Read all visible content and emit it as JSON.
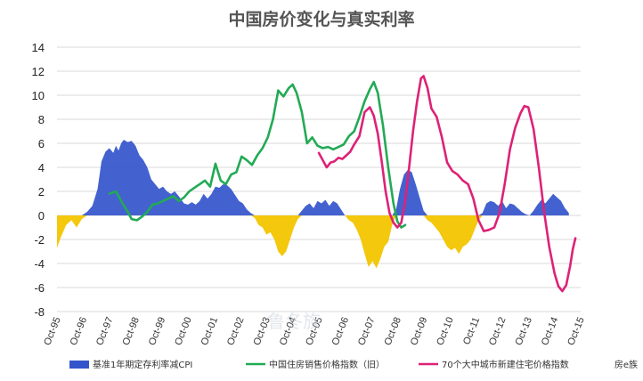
{
  "chart_data": {
    "type": "area+line",
    "title": "中国房价变化与真实利率",
    "y_ticks": [
      "14",
      "12",
      "10",
      "8",
      "6",
      "4",
      "2",
      "0",
      "-2",
      "-4",
      "-6",
      "-8"
    ],
    "ylim": [
      -8,
      14
    ],
    "xlim": [
      1995.75,
      2015.75
    ],
    "x_ticks": [
      "Oct-95",
      "Oct-96",
      "Oct-97",
      "Oct-98",
      "Oct-99",
      "Oct-00",
      "Oct-01",
      "Oct-02",
      "Oct-03",
      "Oct-04",
      "Oct-05",
      "Oct-06",
      "Oct-07",
      "Oct-08",
      "Oct-09",
      "Oct-10",
      "Oct-11",
      "Oct-12",
      "Oct-13",
      "Oct-14",
      "Oct-15"
    ],
    "x_tick_years": [
      1995.75,
      1996.75,
      1997.75,
      1998.75,
      1999.75,
      2000.75,
      2001.75,
      2002.75,
      2003.75,
      2004.75,
      2005.75,
      2006.75,
      2007.75,
      2008.75,
      2009.75,
      2010.75,
      2011.75,
      2012.75,
      2013.75,
      2014.75,
      2015.75
    ],
    "grid": true,
    "legend_position": "bottom",
    "series": [
      {
        "name": "基准1年期定存利率减CPI",
        "kind": "area",
        "color_pos": "#3355cc",
        "color_neg": "#f2c500",
        "points": [
          [
            1995.75,
            -2.7
          ],
          [
            1995.9,
            -1.8
          ],
          [
            1996.1,
            -0.8
          ],
          [
            1996.3,
            -0.4
          ],
          [
            1996.5,
            -1.0
          ],
          [
            1996.7,
            -0.3
          ],
          [
            1996.9,
            0.3
          ],
          [
            1997.1,
            0.8
          ],
          [
            1997.3,
            2.2
          ],
          [
            1997.45,
            4.5
          ],
          [
            1997.6,
            5.3
          ],
          [
            1997.75,
            5.6
          ],
          [
            1997.9,
            5.2
          ],
          [
            1998.0,
            5.8
          ],
          [
            1998.1,
            5.4
          ],
          [
            1998.2,
            6.0
          ],
          [
            1998.3,
            6.3
          ],
          [
            1998.45,
            6.1
          ],
          [
            1998.6,
            6.2
          ],
          [
            1998.75,
            5.8
          ],
          [
            1998.9,
            5.0
          ],
          [
            1999.05,
            4.6
          ],
          [
            1999.2,
            4.0
          ],
          [
            1999.35,
            3.0
          ],
          [
            1999.5,
            2.6
          ],
          [
            1999.65,
            2.2
          ],
          [
            1999.8,
            2.4
          ],
          [
            1999.95,
            2.0
          ],
          [
            2000.1,
            1.8
          ],
          [
            2000.25,
            2.0
          ],
          [
            2000.4,
            1.6
          ],
          [
            2000.6,
            1.0
          ],
          [
            2000.75,
            0.9
          ],
          [
            2000.9,
            1.1
          ],
          [
            2001.05,
            0.9
          ],
          [
            2001.2,
            1.2
          ],
          [
            2001.35,
            1.8
          ],
          [
            2001.5,
            1.4
          ],
          [
            2001.65,
            1.8
          ],
          [
            2001.8,
            2.4
          ],
          [
            2001.95,
            2.3
          ],
          [
            2002.1,
            2.6
          ],
          [
            2002.25,
            2.5
          ],
          [
            2002.4,
            2.2
          ],
          [
            2002.55,
            1.7
          ],
          [
            2002.7,
            1.2
          ],
          [
            2002.85,
            1.0
          ],
          [
            2003.0,
            0.5
          ],
          [
            2003.15,
            0.2
          ],
          [
            2003.3,
            -0.2
          ],
          [
            2003.45,
            -0.8
          ],
          [
            2003.6,
            -1.0
          ],
          [
            2003.75,
            -1.6
          ],
          [
            2003.9,
            -1.4
          ],
          [
            2004.05,
            -2.0
          ],
          [
            2004.2,
            -3.0
          ],
          [
            2004.35,
            -3.4
          ],
          [
            2004.5,
            -3.0
          ],
          [
            2004.65,
            -2.0
          ],
          [
            2004.8,
            -1.0
          ],
          [
            2004.95,
            -0.3
          ],
          [
            2005.1,
            0.4
          ],
          [
            2005.25,
            0.8
          ],
          [
            2005.4,
            1.0
          ],
          [
            2005.55,
            0.6
          ],
          [
            2005.7,
            1.2
          ],
          [
            2005.85,
            1.0
          ],
          [
            2006.0,
            1.3
          ],
          [
            2006.15,
            0.8
          ],
          [
            2006.3,
            1.2
          ],
          [
            2006.45,
            1.0
          ],
          [
            2006.6,
            0.5
          ],
          [
            2006.75,
            0.0
          ],
          [
            2006.9,
            -0.4
          ],
          [
            2007.05,
            -0.6
          ],
          [
            2007.2,
            -1.2
          ],
          [
            2007.35,
            -2.0
          ],
          [
            2007.5,
            -3.2
          ],
          [
            2007.65,
            -4.3
          ],
          [
            2007.8,
            -3.8
          ],
          [
            2007.95,
            -4.4
          ],
          [
            2008.1,
            -3.6
          ],
          [
            2008.25,
            -2.6
          ],
          [
            2008.4,
            -2.2
          ],
          [
            2008.55,
            -0.8
          ],
          [
            2008.7,
            0.5
          ],
          [
            2008.85,
            2.2
          ],
          [
            2009.0,
            3.4
          ],
          [
            2009.15,
            3.8
          ],
          [
            2009.3,
            3.6
          ],
          [
            2009.45,
            2.6
          ],
          [
            2009.6,
            1.5
          ],
          [
            2009.75,
            0.4
          ],
          [
            2009.9,
            -0.4
          ],
          [
            2010.05,
            -0.6
          ],
          [
            2010.2,
            -1.0
          ],
          [
            2010.35,
            -1.4
          ],
          [
            2010.5,
            -2.0
          ],
          [
            2010.65,
            -2.6
          ],
          [
            2010.8,
            -2.9
          ],
          [
            2010.95,
            -2.7
          ],
          [
            2011.1,
            -3.2
          ],
          [
            2011.25,
            -2.6
          ],
          [
            2011.4,
            -2.4
          ],
          [
            2011.55,
            -2.0
          ],
          [
            2011.7,
            -1.2
          ],
          [
            2011.85,
            -0.4
          ],
          [
            2012.0,
            0.2
          ],
          [
            2012.15,
            1.0
          ],
          [
            2012.3,
            1.2
          ],
          [
            2012.45,
            1.1
          ],
          [
            2012.6,
            0.8
          ],
          [
            2012.75,
            1.2
          ],
          [
            2012.9,
            0.6
          ],
          [
            2013.05,
            1.0
          ],
          [
            2013.2,
            0.9
          ],
          [
            2013.35,
            0.6
          ],
          [
            2013.5,
            0.3
          ],
          [
            2013.65,
            0.1
          ],
          [
            2013.8,
            0.0
          ],
          [
            2013.95,
            0.4
          ],
          [
            2014.1,
            0.9
          ],
          [
            2014.25,
            1.3
          ],
          [
            2014.4,
            1.0
          ],
          [
            2014.55,
            1.4
          ],
          [
            2014.7,
            1.8
          ],
          [
            2014.85,
            1.5
          ],
          [
            2015.0,
            1.2
          ],
          [
            2015.15,
            0.6
          ],
          [
            2015.3,
            0.2
          ]
        ]
      },
      {
        "name": "中国住房销售价格指数（旧）",
        "kind": "line",
        "color": "#22aa55",
        "points": [
          [
            1997.75,
            1.8
          ],
          [
            1998.0,
            2.0
          ],
          [
            1998.2,
            1.2
          ],
          [
            1998.4,
            0.5
          ],
          [
            1998.6,
            -0.3
          ],
          [
            1998.8,
            -0.4
          ],
          [
            1999.0,
            -0.1
          ],
          [
            1999.2,
            0.3
          ],
          [
            1999.4,
            0.9
          ],
          [
            1999.6,
            1.0
          ],
          [
            1999.8,
            1.2
          ],
          [
            2000.0,
            1.4
          ],
          [
            2000.2,
            1.6
          ],
          [
            2000.4,
            1.2
          ],
          [
            2000.6,
            1.5
          ],
          [
            2000.8,
            2.0
          ],
          [
            2001.0,
            2.3
          ],
          [
            2001.2,
            2.6
          ],
          [
            2001.4,
            2.9
          ],
          [
            2001.6,
            2.4
          ],
          [
            2001.8,
            4.3
          ],
          [
            2002.0,
            2.9
          ],
          [
            2002.2,
            2.6
          ],
          [
            2002.4,
            3.4
          ],
          [
            2002.6,
            3.6
          ],
          [
            2002.8,
            4.9
          ],
          [
            2003.0,
            4.6
          ],
          [
            2003.2,
            4.2
          ],
          [
            2003.4,
            5.0
          ],
          [
            2003.6,
            5.6
          ],
          [
            2003.8,
            6.5
          ],
          [
            2004.0,
            8.0
          ],
          [
            2004.2,
            10.4
          ],
          [
            2004.4,
            9.9
          ],
          [
            2004.6,
            10.6
          ],
          [
            2004.75,
            10.9
          ],
          [
            2004.9,
            10.2
          ],
          [
            2005.1,
            8.6
          ],
          [
            2005.3,
            6.0
          ],
          [
            2005.5,
            6.5
          ],
          [
            2005.7,
            5.8
          ],
          [
            2005.9,
            5.6
          ],
          [
            2006.1,
            5.7
          ],
          [
            2006.3,
            5.5
          ],
          [
            2006.5,
            5.7
          ],
          [
            2006.7,
            5.9
          ],
          [
            2006.9,
            6.6
          ],
          [
            2007.1,
            7.0
          ],
          [
            2007.3,
            8.2
          ],
          [
            2007.5,
            9.5
          ],
          [
            2007.7,
            10.5
          ],
          [
            2007.85,
            11.1
          ],
          [
            2008.0,
            10.2
          ],
          [
            2008.2,
            7.5
          ],
          [
            2008.4,
            4.0
          ],
          [
            2008.6,
            1.0
          ],
          [
            2008.75,
            -0.5
          ],
          [
            2008.9,
            -1.0
          ],
          [
            2009.05,
            -0.8
          ]
        ]
      },
      {
        "name": "70个大中城市新建住宅价格指数",
        "kind": "line",
        "color": "#dd2277",
        "points": [
          [
            2005.75,
            5.2
          ],
          [
            2005.9,
            4.6
          ],
          [
            2006.05,
            4.0
          ],
          [
            2006.2,
            4.4
          ],
          [
            2006.35,
            4.5
          ],
          [
            2006.5,
            4.8
          ],
          [
            2006.65,
            4.7
          ],
          [
            2006.8,
            5.0
          ],
          [
            2006.95,
            5.3
          ],
          [
            2007.1,
            5.9
          ],
          [
            2007.3,
            6.6
          ],
          [
            2007.5,
            8.6
          ],
          [
            2007.7,
            9.0
          ],
          [
            2007.85,
            8.3
          ],
          [
            2008.0,
            6.8
          ],
          [
            2008.15,
            4.5
          ],
          [
            2008.3,
            2.0
          ],
          [
            2008.45,
            0.2
          ],
          [
            2008.6,
            -0.6
          ],
          [
            2008.75,
            -1.0
          ],
          [
            2008.9,
            -0.6
          ],
          [
            2009.05,
            1.2
          ],
          [
            2009.2,
            4.0
          ],
          [
            2009.35,
            7.0
          ],
          [
            2009.5,
            9.5
          ],
          [
            2009.65,
            11.4
          ],
          [
            2009.75,
            11.6
          ],
          [
            2009.9,
            10.6
          ],
          [
            2010.05,
            8.9
          ],
          [
            2010.25,
            8.2
          ],
          [
            2010.45,
            6.5
          ],
          [
            2010.65,
            4.4
          ],
          [
            2010.85,
            3.7
          ],
          [
            2011.05,
            3.4
          ],
          [
            2011.25,
            2.9
          ],
          [
            2011.45,
            2.6
          ],
          [
            2011.65,
            1.4
          ],
          [
            2011.85,
            -0.4
          ],
          [
            2012.05,
            -1.3
          ],
          [
            2012.25,
            -1.2
          ],
          [
            2012.45,
            -1.0
          ],
          [
            2012.65,
            0.2
          ],
          [
            2012.85,
            2.6
          ],
          [
            2013.05,
            5.5
          ],
          [
            2013.25,
            7.3
          ],
          [
            2013.45,
            8.5
          ],
          [
            2013.6,
            9.1
          ],
          [
            2013.75,
            9.0
          ],
          [
            2013.95,
            7.2
          ],
          [
            2014.15,
            4.0
          ],
          [
            2014.35,
            0.4
          ],
          [
            2014.55,
            -2.6
          ],
          [
            2014.75,
            -4.8
          ],
          [
            2014.9,
            -5.9
          ],
          [
            2015.05,
            -6.3
          ],
          [
            2015.2,
            -5.8
          ],
          [
            2015.35,
            -4.2
          ],
          [
            2015.45,
            -2.8
          ],
          [
            2015.55,
            -1.9
          ]
        ]
      }
    ],
    "watermark": "鲁冬族",
    "legend": [
      {
        "label": "基准1年期定存利率减CPI",
        "color": "#3355cc",
        "kind": "bar"
      },
      {
        "label": "中国住房销售价格指数（旧）",
        "color": "#22aa55",
        "kind": "line"
      },
      {
        "label": "70个大中城市新建住宅价格指数",
        "color": "#dd2277",
        "kind": "line"
      }
    ],
    "corner_mark": "房e族"
  }
}
